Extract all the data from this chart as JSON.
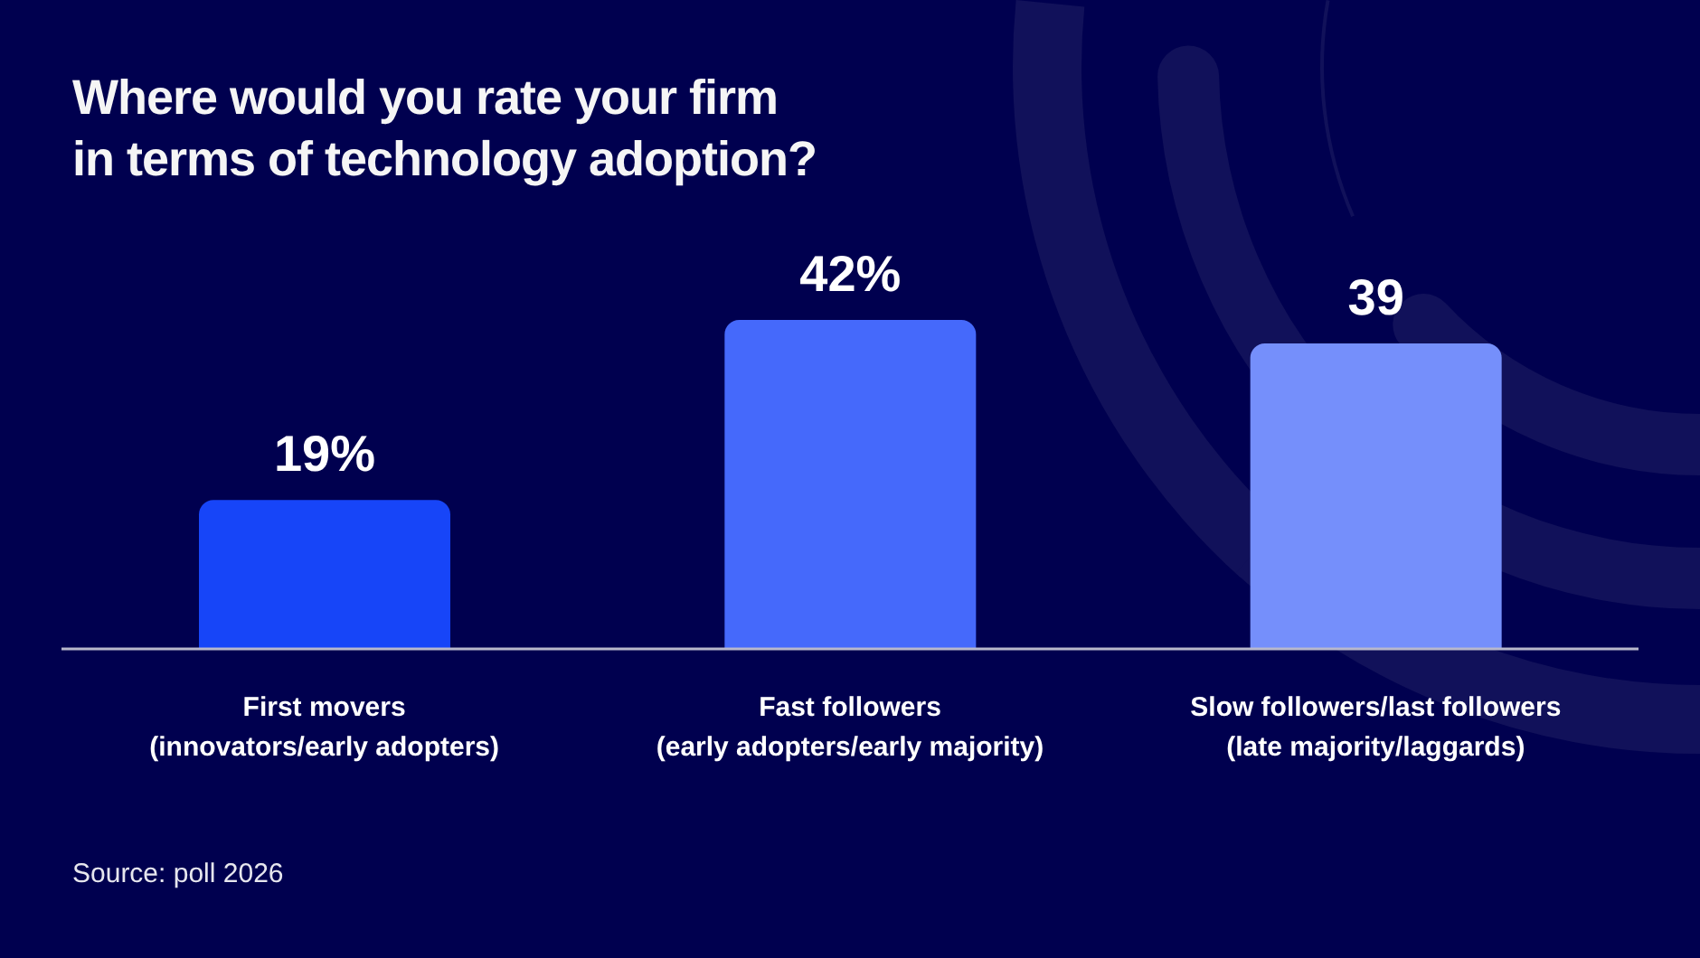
{
  "chart_data": {
    "type": "bar",
    "title": "Where would you rate your firm\nin terms of technology adoption?",
    "categories": [
      "First movers\n(innovators/early adopters)",
      "Fast followers\n(early adopters/early majority)",
      "Slow followers/last followers\n(late majority/laggards)"
    ],
    "values": [
      19,
      42,
      39
    ],
    "colors": [
      "#1745f8",
      "#4569fb",
      "#758ffb"
    ],
    "value_labels": [
      "19%",
      "42%",
      "39"
    ],
    "annotations": [
      "Source: poll 2026"
    ]
  }
}
